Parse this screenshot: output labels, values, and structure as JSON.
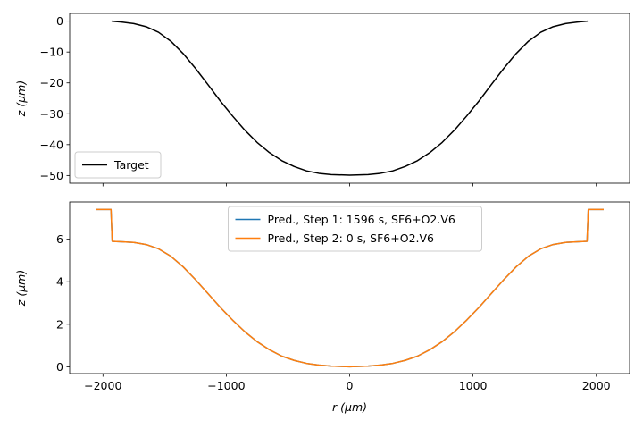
{
  "chart_data": [
    {
      "type": "line",
      "xlabel": "",
      "ylabel": "z (μm)",
      "xlim": [
        -2270,
        2270
      ],
      "ylim": [
        -52.5,
        2.5
      ],
      "yticks": [
        0,
        -10,
        -20,
        -30,
        -40,
        -50
      ],
      "ytick_labels": [
        "0",
        "−10",
        "−20",
        "−30",
        "−40",
        "−50"
      ],
      "xticks": [
        -2000,
        -1000,
        0,
        1000,
        2000
      ],
      "show_xtick_labels": false,
      "legend_position": "lower-left",
      "series": [
        {
          "name": "Target",
          "color": "#000000",
          "x": [
            -1930,
            -1850,
            -1750,
            -1650,
            -1550,
            -1450,
            -1350,
            -1250,
            -1150,
            -1050,
            -950,
            -850,
            -750,
            -650,
            -550,
            -450,
            -350,
            -250,
            -150,
            0,
            150,
            250,
            350,
            450,
            550,
            650,
            750,
            850,
            950,
            1050,
            1150,
            1250,
            1350,
            1450,
            1550,
            1650,
            1750,
            1850,
            1930
          ],
          "y": [
            0,
            -0.3,
            -0.8,
            -1.8,
            -3.6,
            -6.5,
            -10.5,
            -15.3,
            -20.5,
            -25.8,
            -30.7,
            -35.3,
            -39.3,
            -42.6,
            -45.2,
            -47.1,
            -48.5,
            -49.3,
            -49.7,
            -49.9,
            -49.7,
            -49.3,
            -48.5,
            -47.1,
            -45.2,
            -42.6,
            -39.3,
            -35.3,
            -30.7,
            -25.8,
            -20.5,
            -15.3,
            -10.5,
            -6.5,
            -3.6,
            -1.8,
            -0.8,
            -0.3,
            0
          ]
        }
      ]
    },
    {
      "type": "line",
      "xlabel": "r (μm)",
      "ylabel": "z (μm)",
      "xlim": [
        -2270,
        2270
      ],
      "ylim": [
        -0.32,
        7.75
      ],
      "yticks": [
        0,
        2,
        4,
        6
      ],
      "ytick_labels": [
        "0",
        "2",
        "4",
        "6"
      ],
      "xticks": [
        -2000,
        -1000,
        0,
        1000,
        2000
      ],
      "xtick_labels": [
        "−2000",
        "−1000",
        "0",
        "1000",
        "2000"
      ],
      "show_xtick_labels": true,
      "legend_position": "upper-center",
      "series": [
        {
          "name": "Pred., Step 1: 1596 s, SF6+O2.V6",
          "color": "#1f77b4",
          "x": [
            -2060,
            -1935,
            -1925,
            -1850,
            -1750,
            -1650,
            -1550,
            -1450,
            -1350,
            -1250,
            -1150,
            -1050,
            -950,
            -850,
            -750,
            -650,
            -550,
            -450,
            -350,
            -250,
            -150,
            0,
            150,
            250,
            350,
            450,
            550,
            650,
            750,
            850,
            950,
            1050,
            1150,
            1250,
            1350,
            1450,
            1550,
            1650,
            1750,
            1850,
            1925,
            1935,
            2060
          ],
          "y": [
            7.4,
            7.4,
            5.9,
            5.88,
            5.85,
            5.75,
            5.55,
            5.2,
            4.7,
            4.1,
            3.45,
            2.8,
            2.2,
            1.65,
            1.18,
            0.8,
            0.5,
            0.3,
            0.16,
            0.08,
            0.03,
            0.0,
            0.03,
            0.08,
            0.16,
            0.3,
            0.5,
            0.8,
            1.18,
            1.65,
            2.2,
            2.8,
            3.45,
            4.1,
            4.7,
            5.2,
            5.55,
            5.75,
            5.85,
            5.88,
            5.9,
            7.4,
            7.4
          ]
        },
        {
          "name": "Pred., Step 2: 0 s, SF6+O2.V6",
          "color": "#ff7f0e",
          "x": [
            -2060,
            -1935,
            -1925,
            -1850,
            -1750,
            -1650,
            -1550,
            -1450,
            -1350,
            -1250,
            -1150,
            -1050,
            -950,
            -850,
            -750,
            -650,
            -550,
            -450,
            -350,
            -250,
            -150,
            0,
            150,
            250,
            350,
            450,
            550,
            650,
            750,
            850,
            950,
            1050,
            1150,
            1250,
            1350,
            1450,
            1550,
            1650,
            1750,
            1850,
            1925,
            1935,
            2060
          ],
          "y": [
            7.4,
            7.4,
            5.9,
            5.88,
            5.85,
            5.75,
            5.55,
            5.2,
            4.7,
            4.1,
            3.45,
            2.8,
            2.2,
            1.65,
            1.18,
            0.8,
            0.5,
            0.3,
            0.16,
            0.08,
            0.03,
            0.0,
            0.03,
            0.08,
            0.16,
            0.3,
            0.5,
            0.8,
            1.18,
            1.65,
            2.2,
            2.8,
            3.45,
            4.1,
            4.7,
            5.2,
            5.55,
            5.75,
            5.85,
            5.88,
            5.9,
            7.4,
            7.4
          ]
        }
      ]
    }
  ]
}
